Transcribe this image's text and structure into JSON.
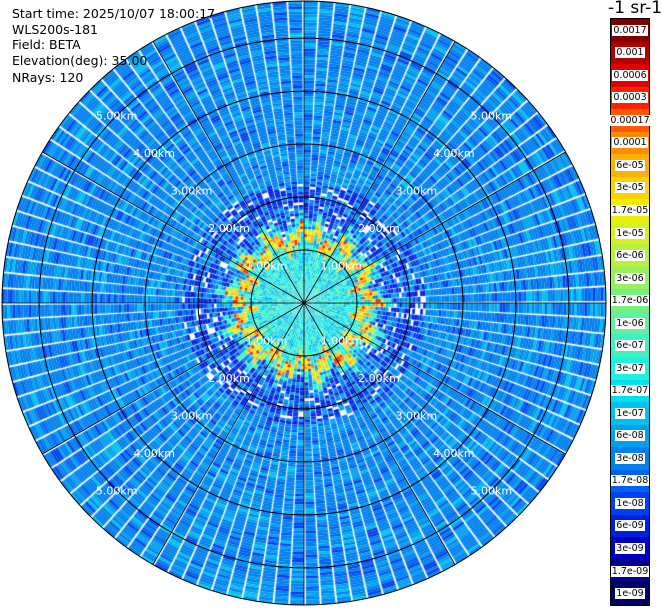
{
  "info": {
    "start_time": "Start time: 2025/10/07 18:00:17",
    "instrument": "WLS200s-181",
    "field": "Field: BETA",
    "elevation": "Elevation(deg): 35.00",
    "nrays": "NRays: 120"
  },
  "colorbar": {
    "title": "-1 sr-1",
    "labels": [
      "0.0017",
      "0.001",
      "0.0006",
      "0.0003",
      "0.00017",
      "0.0001",
      "6e-05",
      "3e-05",
      "1.7e-05",
      "1e-05",
      "6e-06",
      "3e-06",
      "1.7e-06",
      "1e-06",
      "6e-07",
      "3e-07",
      "1.7e-07",
      "1e-07",
      "6e-08",
      "3e-08",
      "1.7e-08",
      "1e-08",
      "6e-09",
      "3e-09",
      "1.7e-09",
      "1e-09"
    ],
    "colors": [
      "#7f0000",
      "#b00000",
      "#e00000",
      "#ff2000",
      "#ff5a00",
      "#ff8c00",
      "#ffb000",
      "#ffd000",
      "#f0ee00",
      "#d8f020",
      "#b8f040",
      "#98f060",
      "#78f080",
      "#60f0a0",
      "#40f0c0",
      "#20f0e0",
      "#00e0f0",
      "#00c0f0",
      "#00a0f0",
      "#0080f0",
      "#0060f0",
      "#0040f0",
      "#0020e0",
      "#0000c0",
      "#000090",
      "#000060"
    ]
  },
  "chart_data": {
    "type": "heatmap",
    "projection": "polar (PPI)",
    "field": "BETA",
    "elevation_deg": 35.0,
    "n_rays": 120,
    "range_rings_km": [
      1.0,
      2.0,
      3.0,
      4.0,
      5.0
    ],
    "ring_labels": [
      "1.00km",
      "2.00km",
      "3.00km",
      "4.00km",
      "5.00km"
    ],
    "max_range_km": 5.7,
    "color_scale": "log",
    "value_range": [
      1e-09,
      0.0017
    ],
    "description_values": {
      "inner_region_0_to_1.1km": 1.7e-07,
      "ring_region_1.1_to_1.5km": 1e-05,
      "ring_peak": 3e-05,
      "outer_region_1.5_to_5.7km": 3e-08
    },
    "grid": true
  }
}
